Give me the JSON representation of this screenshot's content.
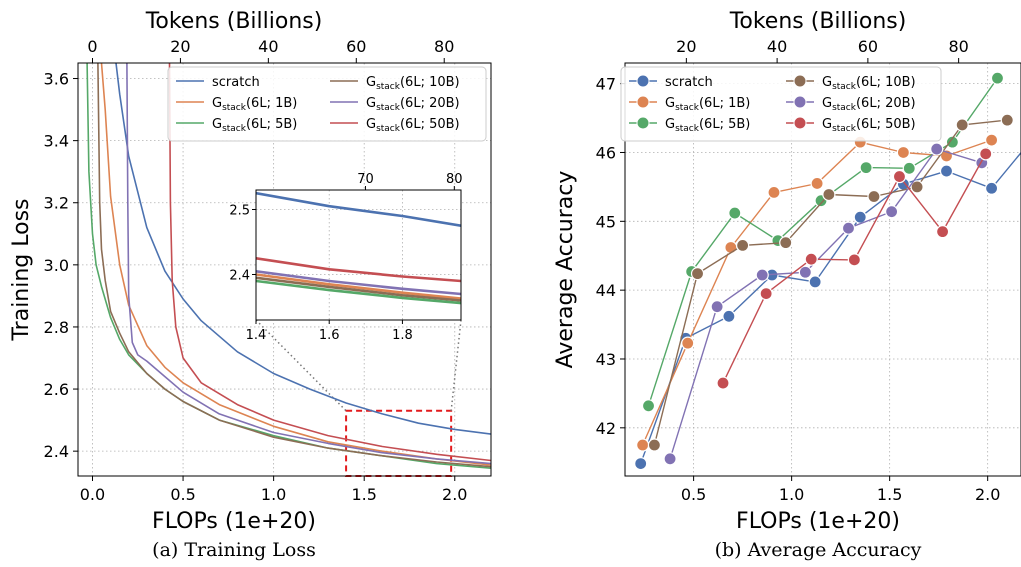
{
  "colors": {
    "scratch": "#4c72b0",
    "g1": "#dd8452",
    "g5": "#55a868",
    "g10": "#8c6d55",
    "g20": "#8172b3",
    "g50": "#c44e52",
    "zoom_box": "#e31a1c"
  },
  "legend": [
    {
      "key": "scratch",
      "prefix": "scratch",
      "sub": "",
      "arg": ""
    },
    {
      "key": "g1",
      "prefix": "G",
      "sub": "stack",
      "arg": "(6L; 1B)"
    },
    {
      "key": "g5",
      "prefix": "G",
      "sub": "stack",
      "arg": "(6L; 5B)"
    },
    {
      "key": "g10",
      "prefix": "G",
      "sub": "stack",
      "arg": "(6L; 10B)"
    },
    {
      "key": "g20",
      "prefix": "G",
      "sub": "stack",
      "arg": "(6L; 20B)"
    },
    {
      "key": "g50",
      "prefix": "G",
      "sub": "stack",
      "arg": "(6L; 50B)"
    }
  ],
  "chart_data": [
    {
      "type": "line",
      "caption": "(a) Training Loss",
      "xlabel": "FLOPs (1e+20)",
      "ylabel": "Training Loss",
      "top_xlabel": "Tokens (Billions)",
      "xlim": [
        -0.08,
        2.2
      ],
      "ylim": [
        2.32,
        3.65
      ],
      "xticks": [
        "0.0",
        "0.5",
        "1.0",
        "1.5",
        "2.0"
      ],
      "xtick_values": [
        0.0,
        0.5,
        1.0,
        1.5,
        2.0
      ],
      "yticks": [
        "2.4",
        "2.6",
        "2.8",
        "3.0",
        "3.2",
        "3.4",
        "3.6"
      ],
      "ytick_values": [
        2.4,
        2.6,
        2.8,
        3.0,
        3.2,
        3.4,
        3.6
      ],
      "top_xticks": [
        "0",
        "20",
        "40",
        "60",
        "80"
      ],
      "top_xtick_values": [
        0,
        20,
        40,
        60,
        80
      ],
      "grid": true,
      "legend_position": "top-right",
      "series": [
        {
          "name": "scratch",
          "color_key": "scratch",
          "x": [
            0.13,
            0.15,
            0.2,
            0.3,
            0.4,
            0.5,
            0.6,
            0.8,
            1.0,
            1.2,
            1.4,
            1.6,
            1.8,
            2.0,
            2.2
          ],
          "y": [
            3.65,
            3.55,
            3.35,
            3.12,
            2.98,
            2.89,
            2.82,
            2.72,
            2.65,
            2.6,
            2.555,
            2.52,
            2.49,
            2.47,
            2.455
          ]
        },
        {
          "name": "G_stack(6L; 1B)",
          "color_key": "g1",
          "x": [
            0.05,
            0.07,
            0.1,
            0.15,
            0.2,
            0.3,
            0.4,
            0.5,
            0.7,
            1.0,
            1.3,
            1.6,
            1.9,
            2.2
          ],
          "y": [
            3.65,
            3.5,
            3.22,
            3.0,
            2.87,
            2.74,
            2.67,
            2.62,
            2.55,
            2.48,
            2.43,
            2.4,
            2.375,
            2.355
          ]
        },
        {
          "name": "G_stack(6L; 5B)",
          "color_key": "g5",
          "x": [
            -0.03,
            -0.02,
            0.0,
            0.02,
            0.05,
            0.1,
            0.15,
            0.2,
            0.3,
            0.4,
            0.5,
            0.7,
            1.0,
            1.3,
            1.6,
            1.9,
            2.2
          ],
          "y": [
            3.65,
            3.3,
            3.1,
            3.0,
            2.93,
            2.83,
            2.76,
            2.71,
            2.65,
            2.6,
            2.56,
            2.5,
            2.45,
            2.41,
            2.385,
            2.36,
            2.345
          ]
        },
        {
          "name": "G_stack(6L; 10B)",
          "color_key": "g10",
          "x": [
            0.03,
            0.04,
            0.05,
            0.07,
            0.1,
            0.15,
            0.2,
            0.3,
            0.4,
            0.5,
            0.7,
            1.0,
            1.3,
            1.6,
            1.9,
            2.2
          ],
          "y": [
            3.65,
            3.2,
            3.05,
            2.95,
            2.85,
            2.78,
            2.72,
            2.65,
            2.6,
            2.56,
            2.5,
            2.445,
            2.41,
            2.385,
            2.365,
            2.35
          ]
        },
        {
          "name": "G_stack(6L; 20B)",
          "color_key": "g20",
          "x": [
            0.19,
            0.195,
            0.2,
            0.22,
            0.25,
            0.3,
            0.4,
            0.5,
            0.7,
            1.0,
            1.3,
            1.6,
            1.9,
            2.2
          ],
          "y": [
            3.65,
            3.2,
            2.9,
            2.75,
            2.71,
            2.69,
            2.64,
            2.59,
            2.52,
            2.46,
            2.425,
            2.395,
            2.375,
            2.36
          ]
        },
        {
          "name": "G_stack(6L; 50B)",
          "color_key": "g50",
          "x": [
            0.425,
            0.43,
            0.44,
            0.46,
            0.5,
            0.6,
            0.8,
            1.0,
            1.3,
            1.6,
            1.9,
            2.2
          ],
          "y": [
            3.65,
            3.2,
            2.95,
            2.8,
            2.7,
            2.62,
            2.55,
            2.5,
            2.45,
            2.415,
            2.39,
            2.37
          ]
        }
      ],
      "zoom_region": {
        "xlim": [
          1.4,
          1.98
        ],
        "ylim": [
          2.32,
          2.53
        ]
      },
      "inset": {
        "xlim": [
          1.4,
          1.96
        ],
        "ylim": [
          2.33,
          2.53
        ],
        "xticks": [
          "1.4",
          "1.6",
          "1.8"
        ],
        "xtick_values": [
          1.4,
          1.6,
          1.8
        ],
        "yticks": [
          "2.4",
          "2.5"
        ],
        "ytick_values": [
          2.4,
          2.5
        ],
        "top_xticks": [
          "70",
          "80"
        ],
        "top_xtick_values": [
          70,
          80
        ],
        "series": [
          {
            "name": "scratch",
            "color_key": "scratch",
            "x": [
              1.4,
              1.6,
              1.8,
              1.96
            ],
            "y": [
              2.525,
              2.505,
              2.49,
              2.475
            ]
          },
          {
            "name": "G_stack(6L; 50B)",
            "color_key": "g50",
            "x": [
              1.4,
              1.6,
              1.8,
              1.96
            ],
            "y": [
              2.425,
              2.408,
              2.397,
              2.39
            ]
          },
          {
            "name": "G_stack(6L; 20B)",
            "color_key": "g20",
            "x": [
              1.4,
              1.6,
              1.8,
              1.96
            ],
            "y": [
              2.405,
              2.39,
              2.378,
              2.37
            ]
          },
          {
            "name": "G_stack(6L; 1B)",
            "color_key": "g1",
            "x": [
              1.4,
              1.6,
              1.8,
              1.96
            ],
            "y": [
              2.4,
              2.385,
              2.372,
              2.363
            ]
          },
          {
            "name": "G_stack(6L; 10B)",
            "color_key": "g10",
            "x": [
              1.4,
              1.6,
              1.8,
              1.96
            ],
            "y": [
              2.395,
              2.381,
              2.368,
              2.36
            ]
          },
          {
            "name": "G_stack(6L; 5B)",
            "color_key": "g5",
            "x": [
              1.4,
              1.6,
              1.8,
              1.96
            ],
            "y": [
              2.39,
              2.376,
              2.364,
              2.356
            ]
          }
        ]
      }
    },
    {
      "type": "line",
      "caption": "(b) Average Accuracy",
      "xlabel": "FLOPs (1e+20)",
      "ylabel": "Average Accuracy",
      "top_xlabel": "Tokens (Billions)",
      "xlim": [
        0.15,
        2.17
      ],
      "ylim": [
        41.3,
        47.3
      ],
      "xticks": [
        "0.5",
        "1.0",
        "1.5",
        "2.0"
      ],
      "xtick_values": [
        0.5,
        1.0,
        1.5,
        2.0
      ],
      "yticks": [
        "42",
        "43",
        "44",
        "45",
        "46",
        "47"
      ],
      "ytick_values": [
        42,
        43,
        44,
        45,
        46,
        47
      ],
      "top_xticks": [
        "20",
        "40",
        "60",
        "80"
      ],
      "top_xtick_values": [
        20,
        40,
        60,
        80
      ],
      "grid": true,
      "legend_position": "top-left",
      "series": [
        {
          "name": "scratch",
          "color_key": "scratch",
          "x": [
            0.23,
            0.46,
            0.68,
            0.9,
            1.12,
            1.35,
            1.57,
            1.79,
            2.02,
            2.2
          ],
          "y": [
            41.48,
            43.3,
            43.62,
            44.22,
            44.12,
            45.06,
            45.54,
            45.73,
            45.48,
            46.1
          ]
        },
        {
          "name": "G_stack(6L; 1B)",
          "color_key": "g1",
          "x": [
            0.24,
            0.47,
            0.69,
            0.91,
            1.13,
            1.35,
            1.57,
            1.79,
            2.02
          ],
          "y": [
            41.75,
            43.23,
            44.62,
            45.42,
            45.55,
            46.15,
            46.0,
            45.95,
            46.18
          ]
        },
        {
          "name": "G_stack(6L; 5B)",
          "color_key": "g5",
          "x": [
            0.27,
            0.49,
            0.71,
            0.93,
            1.15,
            1.38,
            1.6,
            1.82,
            2.05
          ],
          "y": [
            42.32,
            44.27,
            45.12,
            44.72,
            45.3,
            45.78,
            45.77,
            46.15,
            47.08
          ]
        },
        {
          "name": "G_stack(6L; 10B)",
          "color_key": "g10",
          "x": [
            0.3,
            0.52,
            0.75,
            0.97,
            1.19,
            1.42,
            1.64,
            1.87,
            2.1
          ],
          "y": [
            41.75,
            44.24,
            44.65,
            44.69,
            45.39,
            45.36,
            45.5,
            46.4,
            46.47
          ]
        },
        {
          "name": "G_stack(6L; 20B)",
          "color_key": "g20",
          "x": [
            0.38,
            0.62,
            0.85,
            1.07,
            1.29,
            1.51,
            1.74,
            1.97
          ],
          "y": [
            41.55,
            43.76,
            44.22,
            44.26,
            44.9,
            45.14,
            46.05,
            45.85
          ]
        },
        {
          "name": "G_stack(6L; 50B)",
          "color_key": "g50",
          "x": [
            0.65,
            0.87,
            1.1,
            1.32,
            1.55,
            1.77,
            1.99
          ],
          "y": [
            42.65,
            43.95,
            44.45,
            44.44,
            45.65,
            44.85,
            45.98
          ]
        }
      ]
    }
  ]
}
